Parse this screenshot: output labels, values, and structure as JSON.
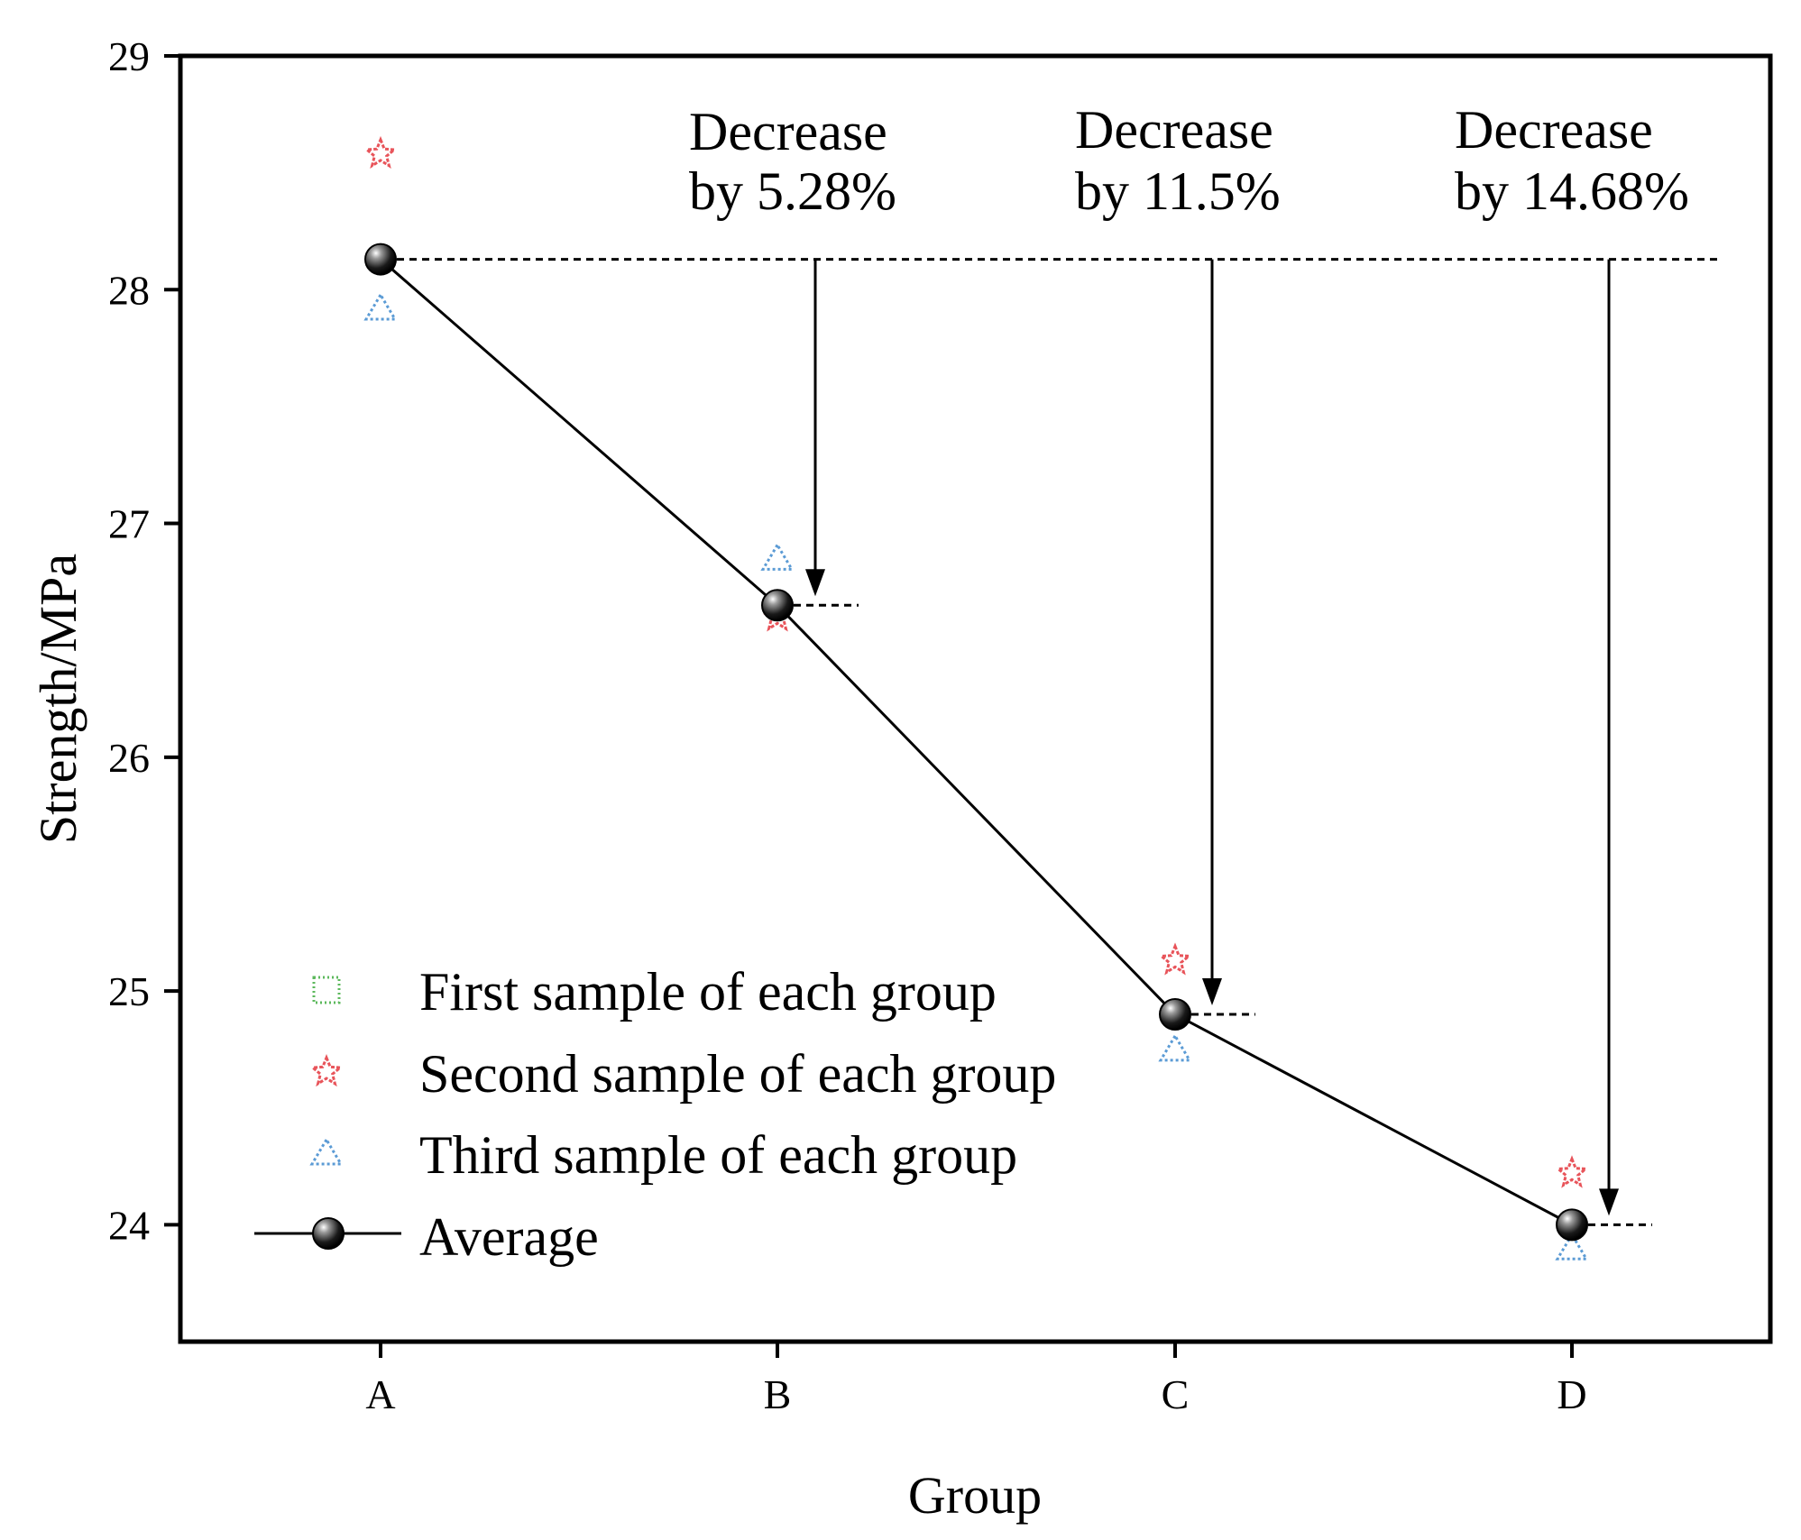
{
  "chart_data": {
    "type": "line",
    "title": "",
    "xlabel": "Group",
    "ylabel": "Strength/MPa",
    "categories": [
      "A",
      "B",
      "C",
      "D"
    ],
    "ylim": [
      23.5,
      29
    ],
    "yticks": [
      24,
      25,
      26,
      27,
      28,
      29
    ],
    "series": [
      {
        "name": "First sample of each group",
        "marker": "square",
        "color": "#5cb85c",
        "values": [
          null,
          null,
          null,
          null
        ]
      },
      {
        "name": "Second sample of each group",
        "marker": "star",
        "color": "#e8545a",
        "values": [
          28.58,
          26.6,
          25.13,
          24.22
        ]
      },
      {
        "name": "Third sample of each group",
        "marker": "triangle",
        "color": "#5b9bd5",
        "values": [
          27.92,
          26.85,
          24.75,
          23.9
        ]
      },
      {
        "name": "Average",
        "marker": "sphere",
        "color": "#000000",
        "values": [
          28.13,
          26.65,
          24.9,
          24.0
        ]
      }
    ],
    "annotations": [
      {
        "line1": "Decrease",
        "line2": "by 5.28%",
        "target": "B"
      },
      {
        "line1": "Decrease",
        "line2": "by 11.5%",
        "target": "C"
      },
      {
        "line1": "Decrease",
        "line2": "by 14.68%",
        "target": "D"
      }
    ],
    "grid": false,
    "legend_position": "bottom-left"
  }
}
